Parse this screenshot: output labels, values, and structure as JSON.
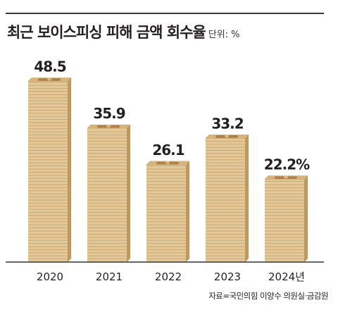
{
  "chart_data": {
    "type": "bar",
    "title": "최근 보이스피싱 피해 금액 회수율",
    "unit": "단위: %",
    "categories": [
      "2020",
      "2021",
      "2022",
      "2023",
      "2024년"
    ],
    "values": [
      48.5,
      35.9,
      26.1,
      33.2,
      22.2
    ],
    "value_labels": [
      "48.5",
      "35.9",
      "26.1",
      "33.2",
      "22.2%"
    ],
    "ylim": [
      0,
      52
    ],
    "grid": false,
    "legend": "none",
    "bar_style": "stacked coins with won mark",
    "coin_symbol": "₩",
    "colors": {
      "coin_face": "#e3c99a",
      "coin_edge": "#c8a46c",
      "coin_top": "#d8b47c",
      "coin_shade": "#bb9560",
      "emblem": "#b08148",
      "axis": "#333333"
    }
  },
  "source": "자료=국민의힘 이양수 의원실·금감원"
}
